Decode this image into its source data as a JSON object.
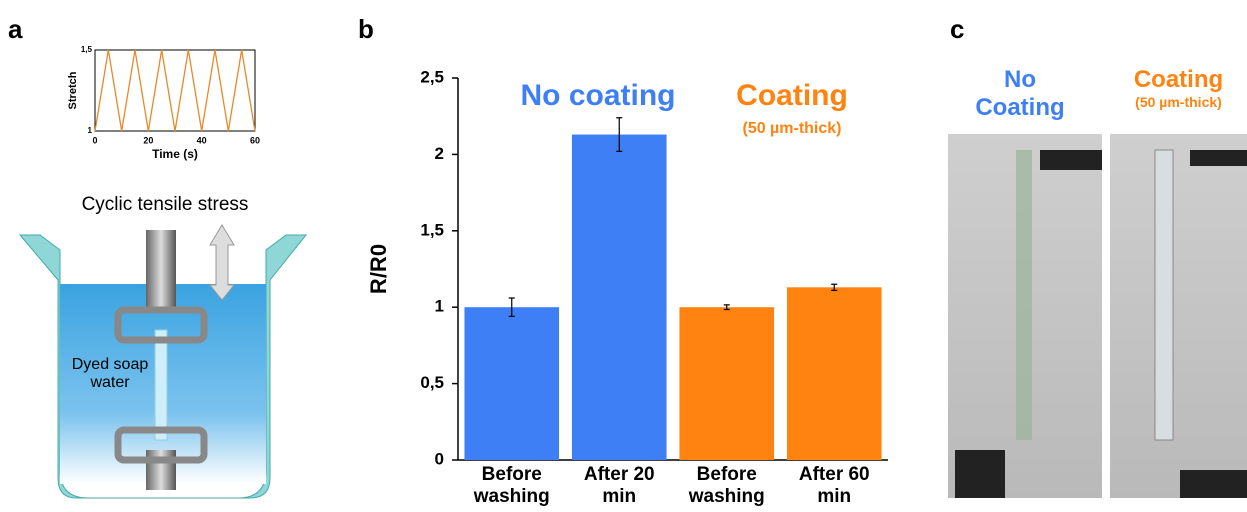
{
  "panels": {
    "a": "a",
    "b": "b",
    "c": "c"
  },
  "chart_data": [
    {
      "type": "line",
      "xlabel": "Time (s)",
      "ylabel": "Stretch",
      "x": [
        0,
        5,
        10,
        15,
        20,
        25,
        30,
        35,
        40,
        45,
        50,
        55,
        60
      ],
      "values": [
        1,
        1.5,
        1,
        1.5,
        1,
        1.5,
        1,
        1.5,
        1,
        1.5,
        1,
        1.5,
        1
      ],
      "color": "#e8892a",
      "xlim": [
        0,
        60
      ],
      "ylim": [
        1,
        1.5
      ],
      "xticks": [
        0,
        20,
        40,
        60
      ],
      "yticks": [
        1,
        {
          "value": 1.5,
          "label": "1,5"
        }
      ]
    },
    {
      "type": "bar",
      "ylabel": "R/R0",
      "categories": [
        "Before washing",
        "After 20 min",
        "Before washing",
        "After 60 min"
      ],
      "values": [
        1.0,
        2.13,
        1.0,
        1.13
      ],
      "errors": [
        0.06,
        0.11,
        0.015,
        0.02
      ],
      "colors": [
        "#3f7ff5",
        "#3f7ff5",
        "#ff8311",
        "#ff8311"
      ],
      "ylim": [
        0,
        2.5
      ],
      "yticks": [
        0,
        {
          "value": 0.5,
          "label": "0,5"
        },
        1,
        {
          "value": 1.5,
          "label": "1,5"
        },
        2,
        {
          "value": 2.5,
          "label": "2,5"
        }
      ],
      "annotations": [
        {
          "text": "No coating",
          "color": "#3f7ff5"
        },
        {
          "text": "Coating",
          "color": "#ff8311"
        },
        {
          "text": "(50 µm-thick)",
          "color": "#ff8311"
        }
      ]
    }
  ],
  "diagram": {
    "stress": "Cyclic tensile stress",
    "liquid": "Dyed soap water"
  },
  "photos": {
    "left": "No Coating",
    "right": "Coating",
    "right_note": "(50 µm-thick)",
    "left_color": "#3f7ff5",
    "right_color": "#ff8311"
  }
}
